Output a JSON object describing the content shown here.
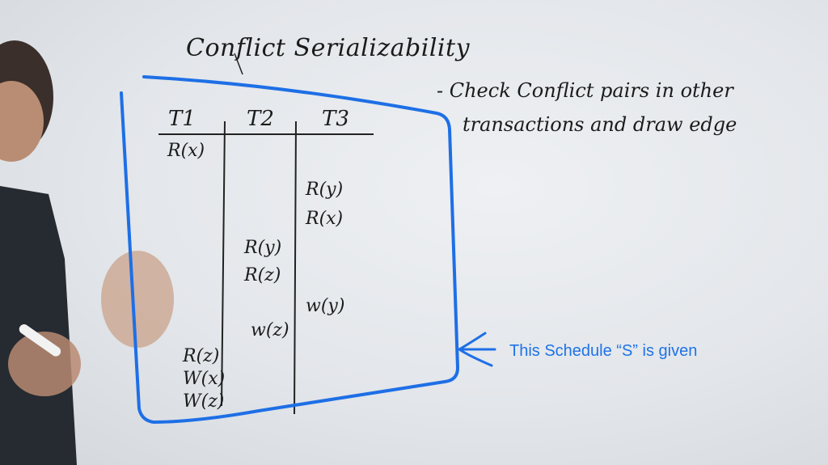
{
  "board": {
    "title": "Conflict Serializability",
    "note_line1": "- Check Conflict pairs in other",
    "note_line2": "transactions and draw edge"
  },
  "schedule": {
    "headers": [
      "T1",
      "T2",
      "T3"
    ],
    "operations": {
      "t1_1": "R(x)",
      "t3_1": "R(y)",
      "t3_2": "R(x)",
      "t2_1": "R(y)",
      "t2_2": "R(z)",
      "t3_3": "w(y)",
      "t2_3": "w(z)",
      "t1_2": "R(z)",
      "t1_3": "W(x)",
      "t1_4": "W(z)"
    }
  },
  "annotation": {
    "caption": "This Schedule “S” is given",
    "color": "#1e73e8"
  }
}
